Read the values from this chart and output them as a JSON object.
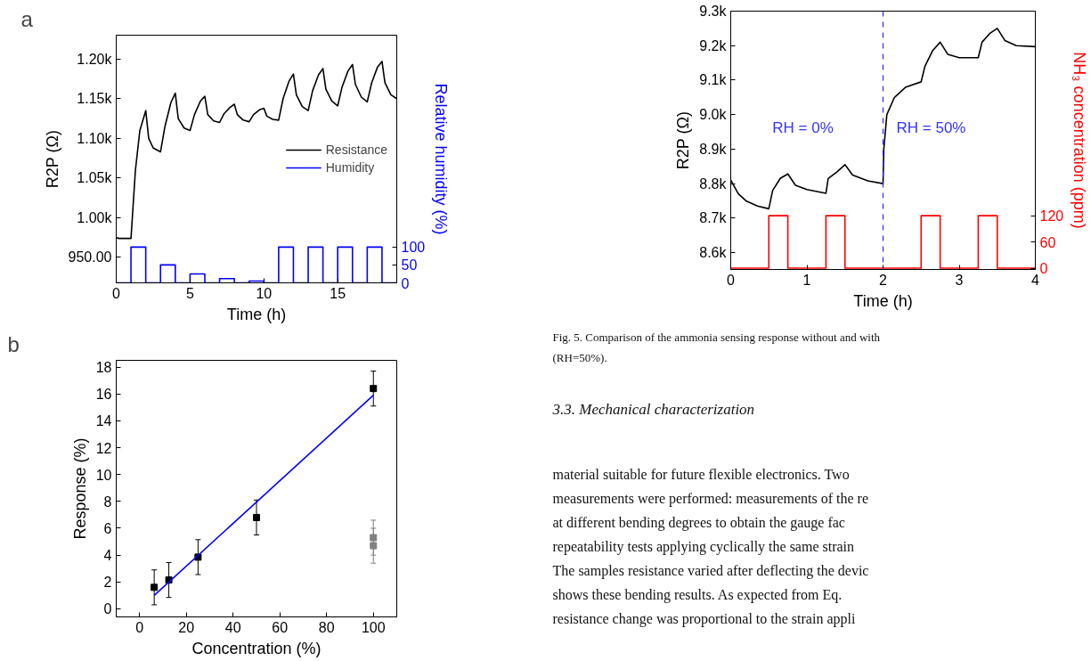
{
  "chart_data": [
    {
      "type": "line",
      "annotations": [
        "a"
      ],
      "xlabel": "Time (h)",
      "ylabel": "R2P (Ω)",
      "y2label": "Relative humidity (%)",
      "xlim": [
        0,
        19
      ],
      "xticks": [
        0,
        5,
        10,
        15
      ],
      "ylim": [
        918,
        1230
      ],
      "yticks": [
        {
          "value": 950,
          "label": "950.00"
        },
        {
          "value": 1000,
          "label": "1.00k"
        },
        {
          "value": 1050,
          "label": "1.05k"
        },
        {
          "value": 1100,
          "label": "1.10k"
        },
        {
          "value": 1150,
          "label": "1.15k"
        },
        {
          "value": 1200,
          "label": "1.20k"
        }
      ],
      "y2lim": [
        0,
        692
      ],
      "y2ticks": [
        0,
        50,
        100
      ],
      "legend": "right",
      "grid": false,
      "series": [
        {
          "name": "Resistance",
          "color": "#000000",
          "x": [
            0,
            0.2,
            1.0,
            1.3,
            1.6,
            2.0,
            2.2,
            2.5,
            3.0,
            3.3,
            3.7,
            4.0,
            4.2,
            4.6,
            5.0,
            5.3,
            5.7,
            6.0,
            6.2,
            6.6,
            7.0,
            7.3,
            7.7,
            8.0,
            8.2,
            8.6,
            9.0,
            9.3,
            9.7,
            10.0,
            10.2,
            10.6,
            11.0,
            11.3,
            11.7,
            12.0,
            12.2,
            12.6,
            13.0,
            13.3,
            13.7,
            14.0,
            14.2,
            14.6,
            15.0,
            15.3,
            15.7,
            16.0,
            16.2,
            16.6,
            17.0,
            17.3,
            17.7,
            18.0,
            18.2,
            18.6,
            19.0
          ],
          "values": [
            975,
            974,
            974,
            1060,
            1110,
            1135,
            1100,
            1088,
            1083,
            1115,
            1145,
            1157,
            1125,
            1113,
            1110,
            1130,
            1147,
            1153,
            1130,
            1122,
            1120,
            1131,
            1139,
            1143,
            1130,
            1123,
            1121,
            1130,
            1136,
            1138,
            1128,
            1124,
            1123,
            1150,
            1172,
            1181,
            1155,
            1140,
            1135,
            1160,
            1180,
            1188,
            1162,
            1147,
            1141,
            1165,
            1185,
            1193,
            1168,
            1152,
            1146,
            1170,
            1190,
            1197,
            1170,
            1155,
            1150
          ]
        },
        {
          "name": "Humidity",
          "color": "#0000ff",
          "axis": "y2",
          "x": [
            0,
            1,
            1,
            2,
            2,
            3,
            3,
            4,
            4,
            5,
            5,
            6,
            6,
            7,
            7,
            8,
            8,
            9,
            9,
            10,
            10,
            11,
            11,
            12,
            12,
            13,
            13,
            14,
            14,
            15,
            15,
            16,
            16,
            17,
            17,
            18,
            18,
            19
          ],
          "values": [
            0,
            0,
            100,
            100,
            0,
            0,
            50,
            50,
            0,
            0,
            25,
            25,
            0,
            0,
            12,
            12,
            0,
            0,
            5,
            5,
            0,
            0,
            100,
            100,
            0,
            0,
            100,
            100,
            0,
            0,
            100,
            100,
            0,
            0,
            100,
            100,
            0,
            0
          ]
        }
      ]
    },
    {
      "type": "line",
      "xlabel": "Time (h)",
      "ylabel": "R2P (Ω)",
      "y2label": "NH₃ concentration (ppm)",
      "annotations": [
        "RH = 0%",
        "RH = 50%"
      ],
      "xlim": [
        0,
        4
      ],
      "xticks": [
        0,
        1,
        2,
        3,
        4
      ],
      "ylim": [
        8551,
        9300
      ],
      "yticks": [
        {
          "value": 8600,
          "label": "8.6k"
        },
        {
          "value": 8700,
          "label": "8.7k"
        },
        {
          "value": 8800,
          "label": "8.8k"
        },
        {
          "value": 8900,
          "label": "8.9k"
        },
        {
          "value": 9000,
          "label": "9.0k"
        },
        {
          "value": 9100,
          "label": "9.1k"
        },
        {
          "value": 9200,
          "label": "9.2k"
        },
        {
          "value": 9300,
          "label": "9.3k"
        }
      ],
      "y2lim": [
        -3,
        588
      ],
      "y2ticks": [
        0,
        60,
        120
      ],
      "grid": false,
      "ref_lines": [
        {
          "axis": "x",
          "value": 2,
          "label": null,
          "color": "#3333ff",
          "line_style": "dashed"
        }
      ],
      "series": [
        {
          "color": "#000000",
          "x": [
            0,
            0.1,
            0.2,
            0.35,
            0.5,
            0.55,
            0.65,
            0.75,
            0.85,
            1.0,
            1.25,
            1.28,
            1.4,
            1.5,
            1.6,
            1.8,
            2.0,
            2.01,
            2.05,
            2.15,
            2.3,
            2.5,
            2.55,
            2.65,
            2.75,
            2.85,
            3.0,
            3.25,
            3.3,
            3.4,
            3.5,
            3.6,
            3.75,
            4.0
          ],
          "values": [
            8810,
            8770,
            8750,
            8735,
            8727,
            8780,
            8815,
            8828,
            8795,
            8783,
            8772,
            8815,
            8835,
            8855,
            8825,
            8808,
            8800,
            8900,
            9000,
            9050,
            9080,
            9095,
            9140,
            9185,
            9210,
            9175,
            9165,
            9165,
            9210,
            9235,
            9250,
            9215,
            9200,
            9197
          ]
        },
        {
          "color": "#ff0000",
          "axis": "y2",
          "x": [
            0,
            0.5,
            0.5,
            0.75,
            0.75,
            1.25,
            1.25,
            1.5,
            1.5,
            2.5,
            2.5,
            2.75,
            2.75,
            3.25,
            3.25,
            3.5,
            3.5,
            4
          ],
          "values": [
            0,
            0,
            120,
            120,
            0,
            0,
            120,
            120,
            0,
            0,
            120,
            120,
            0,
            0,
            120,
            120,
            0,
            0
          ]
        }
      ]
    },
    {
      "type": "scatter",
      "annotations": [
        "b"
      ],
      "xlabel": "Concentration (%)",
      "ylabel": "Response (%)",
      "xlim": [
        -10,
        110
      ],
      "xticks": [
        0,
        20,
        40,
        60,
        80,
        100
      ],
      "ylim": [
        -0.6,
        18.5
      ],
      "yticks": [
        0,
        2,
        4,
        6,
        8,
        10,
        12,
        14,
        16,
        18
      ],
      "grid": false,
      "series": [
        {
          "color": "#000000",
          "marker": "square",
          "x": [
            6.25,
            12.5,
            25,
            50,
            100
          ],
          "values": [
            1.6,
            2.15,
            3.85,
            6.8,
            16.4
          ],
          "errors": [
            1.3,
            1.3,
            1.3,
            1.3,
            1.3
          ]
        },
        {
          "color": "#808080",
          "marker": "square",
          "x": [
            100,
            100
          ],
          "values": [
            5.3,
            4.7
          ],
          "errors": [
            1.3,
            1.3
          ]
        },
        {
          "type": "line",
          "color": "#0000ff",
          "x": [
            6.25,
            100
          ],
          "values": [
            1.0,
            15.9
          ]
        }
      ]
    },
    {
      "type": "other",
      "annotations": [
        "Fig. 5. Comparison of the ammonia sensing response without and with",
        "(RH=50%).",
        "3.3. Mechanical characterization",
        "material suitable for future flexible electronics. Two",
        "measurements were performed: measurements of the re",
        "at different bending degrees to obtain the gauge fac",
        "repeatability tests applying cyclically the same strain",
        "The samples resistance varied after deflecting the devic",
        "shows these bending results. As expected from Eq.",
        "resistance change was proportional to the strain appli"
      ]
    }
  ]
}
